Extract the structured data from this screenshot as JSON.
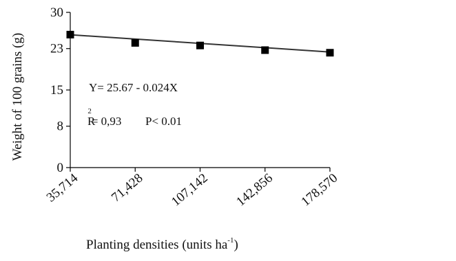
{
  "chart_data": {
    "type": "scatter",
    "title": "",
    "xlabel": "Planting densities (units ha",
    "xlabel_superscript": "-1",
    "xlabel_suffix": ")",
    "ylabel": "Weight of 100 grains (g)",
    "x": [
      35714,
      71428,
      107142,
      142856,
      178570
    ],
    "x_tick_labels": [
      "35,714",
      "71,428",
      "107,142",
      "142,856",
      "178,570"
    ],
    "y": [
      25.7,
      24.1,
      23.6,
      22.7,
      22.2
    ],
    "ylim": [
      0,
      30
    ],
    "y_ticks": [
      0,
      8,
      15,
      23,
      30
    ],
    "y_tick_labels": [
      "0",
      "8",
      "15",
      "23",
      "30"
    ],
    "grid": false,
    "legend": false,
    "series_color": "#000000",
    "trendline": {
      "intercept": 25.67,
      "slope": -0.024,
      "slope_per_x": 2.33e-05,
      "color": "#333333"
    },
    "annotations": {
      "equation": "Y= 25.67 - 0.024X",
      "r_label": "R",
      "r_superscript": "2",
      "r_value": "= 0,93",
      "p_value": "P< 0.01"
    }
  }
}
